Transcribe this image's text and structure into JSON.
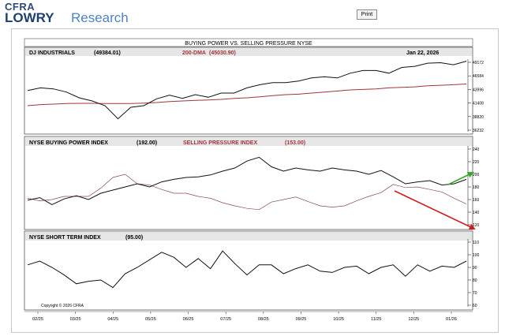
{
  "header": {
    "logo_top": "CFRA",
    "logo_bold": "LOWRY",
    "logo_rest": "Research",
    "print_label": "Print"
  },
  "chart_title": "BUYING POWER VS. SELLING PRESSURE NYSE",
  "date": "Jan 22, 2026",
  "copyright": "Copyright © 2026 CFRA",
  "x_ticks": [
    "02/25",
    "03/25",
    "04/25",
    "05/25",
    "06/25",
    "07/25",
    "08/25",
    "09/25",
    "10/25",
    "11/25",
    "12/25",
    "01/26"
  ],
  "colors": {
    "dji": "#111111",
    "dma": "#a0353e",
    "buying": "#111111",
    "selling": "#8c4a4a",
    "red_arrow": "#cc1f1f",
    "green_arrow": "#3aa52d"
  },
  "chart_data": [
    {
      "type": "line",
      "title": "DJ INDUSTRIALS",
      "value_label": "(49384.01)",
      "secondary_label": "200-DMA",
      "secondary_value_label": "(45030.90)",
      "ylim": [
        36232,
        49172
      ],
      "y_ticks": [
        49172,
        46584,
        43996,
        41408,
        38820,
        36232
      ],
      "series": [
        {
          "name": "DJ INDUSTRIALS",
          "values": [
            43800,
            44300,
            44100,
            43500,
            42400,
            41800,
            40900,
            38400,
            40600,
            40900,
            42200,
            42900,
            42300,
            43000,
            42500,
            43300,
            43300,
            44300,
            44900,
            45300,
            45300,
            45600,
            46200,
            46400,
            46200,
            47100,
            47600,
            47600,
            47100,
            48200,
            48400,
            49000,
            49100,
            48700,
            49384
          ]
        },
        {
          "name": "200-DMA",
          "values": [
            40900,
            41100,
            41200,
            41300,
            41350,
            41350,
            41300,
            41300,
            41300,
            41400,
            41500,
            41700,
            41800,
            41900,
            42000,
            42100,
            42300,
            42400,
            42600,
            42800,
            43000,
            43100,
            43300,
            43500,
            43700,
            43900,
            44000,
            44100,
            44300,
            44400,
            44500,
            44700,
            44800,
            44900,
            45031
          ]
        }
      ]
    },
    {
      "type": "line",
      "title": "NYSE BUYING POWER INDEX",
      "value_label": "(192.00)",
      "secondary_label": "SELLING PRESSURE INDEX",
      "secondary_value_label": "(153.00)",
      "ylim": [
        120,
        240
      ],
      "y_ticks": [
        240,
        220,
        200,
        180,
        160,
        140,
        120
      ],
      "series": [
        {
          "name": "NYSE BUYING POWER INDEX",
          "values": [
            159,
            163,
            152,
            161,
            166,
            160,
            170,
            175,
            180,
            185,
            180,
            188,
            192,
            195,
            196,
            199,
            205,
            210,
            221,
            227,
            212,
            205,
            210,
            207,
            205,
            210,
            207,
            205,
            200,
            206,
            196,
            185,
            188,
            190,
            183,
            185,
            192
          ]
        },
        {
          "name": "SELLING PRESSURE INDEX",
          "values": [
            162,
            158,
            160,
            165,
            165,
            165,
            178,
            195,
            200,
            185,
            183,
            176,
            170,
            170,
            165,
            162,
            155,
            150,
            146,
            144,
            156,
            160,
            164,
            157,
            150,
            148,
            150,
            158,
            165,
            171,
            184,
            179,
            180,
            176,
            172,
            162,
            153
          ]
        }
      ]
    },
    {
      "type": "line",
      "title": "NYSE SHORT TERM INDEX",
      "value_label": "(95.00)",
      "ylim": [
        60,
        110
      ],
      "y_ticks": [
        110,
        100,
        90,
        80,
        70,
        60
      ],
      "series": [
        {
          "name": "NYSE SHORT TERM INDEX",
          "values": [
            92,
            95,
            90,
            84,
            77,
            79,
            80,
            74,
            85,
            90,
            96,
            102,
            98,
            90,
            97,
            89,
            103,
            93,
            84,
            92,
            92,
            85,
            89,
            92,
            87,
            86,
            90,
            91,
            85,
            90,
            92,
            83,
            92,
            87,
            91,
            90,
            95
          ]
        }
      ]
    }
  ]
}
